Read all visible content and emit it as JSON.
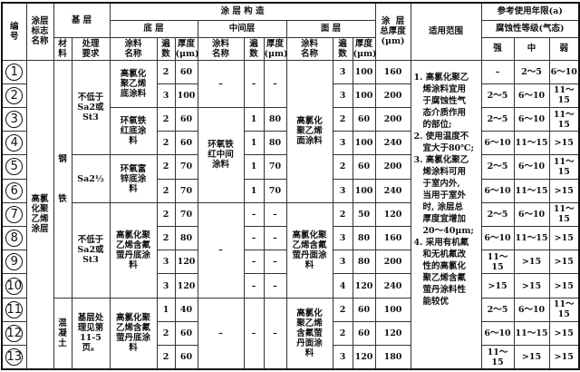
{
  "header": {
    "no": "编\n号",
    "coating_name": "涂层\n标志\n名称",
    "substrate": "基 层",
    "material": "材\n料",
    "treatment": "处理\n要求",
    "structure": "涂 层 构 造",
    "base_layer": "底 层",
    "middle_layer": "中间层",
    "face_layer": "面 层",
    "paint_name": "涂料\n名称",
    "coats": "遍\n数",
    "thickness": "厚度\n(μm)",
    "total_thickness": "涂  层\n总厚度\n(μm)",
    "scope": "适用范围",
    "service_life": "参考使用年限(a)",
    "corrosion_grade": "腐蚀性等级(气态)",
    "strong": "强",
    "medium": "中",
    "weak": "弱"
  },
  "coating_name": "高氯\n化聚\n乙烯\n涂层",
  "scope": "1. 高氯化聚乙\n   烯涂料宜用\n   于腐蚀性气\n   态介质作用\n   的部位;\n2. 使用温度不\n   宜大于80℃;\n3. 高氯化聚乙\n   烯涂料可用\n   于室内外,\n   当用于室外\n   时, 涂层总\n   厚度宜增加\n   20～40μm;\n4. 采用有机氟\n   和无机氟改\n   性的高氯化\n   聚乙烯含氟\n   萤丹涂料性\n   能较优",
  "material_groups": [
    {
      "text": "钢\n\n\n\n铁",
      "rows": 10
    },
    {
      "text": "混\n凝\n土",
      "rows": 3
    }
  ],
  "treatment_groups": [
    {
      "text": "不低于\nSa2或\nSt3",
      "rows": 4
    },
    {
      "text": "Sa2½",
      "rows": 2
    },
    {
      "text": "不低于\nSa2或\nSt3",
      "rows": 4
    },
    {
      "text": "基层处\n理见第\n11-5页。",
      "rows": 3
    }
  ],
  "base_name_groups": [
    {
      "text": "高氯化\n聚乙烯\n底涂料",
      "rows": 2
    },
    {
      "text": "环氧铁\n红底涂\n料",
      "rows": 2
    },
    {
      "text": "环氧富\n锌底涂\n料",
      "rows": 2
    },
    {
      "text": "高氯化聚\n乙烯含氟\n萤丹底涂\n料",
      "rows": 4
    },
    {
      "text": "高氯化聚\n乙烯含氟\n萤丹底涂\n料",
      "rows": 3
    }
  ],
  "middle_name_groups": [
    {
      "text": "–",
      "rows": 2
    },
    {
      "text": "环氧铁\n红中间\n涂料",
      "rows": 4
    },
    {
      "text": "–",
      "rows": 4
    },
    {
      "text": "–",
      "rows": 3
    }
  ],
  "face_name_groups": [
    {
      "text": "高氯化\n聚乙烯\n面涂料",
      "rows": 6
    },
    {
      "text": "高氯化聚\n乙烯含氟\n萤丹面涂\n料",
      "rows": 4
    },
    {
      "text": "高氯化\n聚乙烯\n含氟萤\n丹面涂\n料",
      "rows": 3
    }
  ],
  "middle_coat_groups": [
    {
      "coats": "–",
      "thickness": "–",
      "rows": 2
    },
    {
      "coats": "1",
      "thickness": "80",
      "rows": 1
    },
    {
      "coats": "1",
      "thickness": "80",
      "rows": 1
    },
    {
      "coats": "1",
      "thickness": "70",
      "rows": 1
    },
    {
      "coats": "1",
      "thickness": "70",
      "rows": 1
    },
    {
      "coats": "–",
      "thickness": "–",
      "rows": 1
    },
    {
      "coats": "–",
      "thickness": "–",
      "rows": 1
    },
    {
      "coats": "–",
      "thickness": "–",
      "rows": 1
    },
    {
      "coats": "–",
      "thickness": "–",
      "rows": 1
    },
    {
      "coats": "–",
      "thickness": "–",
      "rows": 3
    }
  ],
  "rows": [
    {
      "no": "1",
      "base_coats": "2",
      "base_thk": "60",
      "face_coats": "3",
      "face_thk": "100",
      "total": "160",
      "strong": "–",
      "medium": "2～5",
      "weak": "6～10"
    },
    {
      "no": "2",
      "base_coats": "3",
      "base_thk": "100",
      "face_coats": "3",
      "face_thk": "100",
      "total": "200",
      "strong": "2～5",
      "medium": "6～10",
      "weak": "11～15"
    },
    {
      "no": "3",
      "base_coats": "2",
      "base_thk": "60",
      "face_coats": "2",
      "face_thk": "60",
      "total": "200",
      "strong": "2～5",
      "medium": "6～10",
      "weak": "11～15"
    },
    {
      "no": "4",
      "base_coats": "2",
      "base_thk": "60",
      "face_coats": "3",
      "face_thk": "100",
      "total": "240",
      "strong": "6～10",
      "medium": "11～15",
      "weak": ">15"
    },
    {
      "no": "5",
      "base_coats": "2",
      "base_thk": "70",
      "face_coats": "2",
      "face_thk": "60",
      "total": "200",
      "strong": "2～5",
      "medium": "6～10",
      "weak": "11～15"
    },
    {
      "no": "6",
      "base_coats": "2",
      "base_thk": "70",
      "face_coats": "3",
      "face_thk": "100",
      "total": "240",
      "strong": "6～10",
      "medium": "11～15",
      "weak": ">15"
    },
    {
      "no": "7",
      "base_coats": "2",
      "base_thk": "70",
      "face_coats": "2",
      "face_thk": "50",
      "total": "120",
      "strong": "2～5",
      "medium": "6～10",
      "weak": "11～15"
    },
    {
      "no": "8",
      "base_coats": "2",
      "base_thk": "80",
      "face_coats": "3",
      "face_thk": "80",
      "total": "160",
      "strong": "6～10",
      "medium": "11～15",
      "weak": ">15"
    },
    {
      "no": "9",
      "base_coats": "3",
      "base_thk": "120",
      "face_coats": "3",
      "face_thk": "80",
      "total": "200",
      "strong": "11～15",
      "medium": ">15",
      "weak": ">15"
    },
    {
      "no": "10",
      "base_coats": "3",
      "base_thk": "120",
      "face_coats": "4",
      "face_thk": "120",
      "total": "240",
      "strong": ">15",
      "medium": ">15",
      "weak": ">15"
    },
    {
      "no": "11",
      "base_coats": "1",
      "base_thk": "40",
      "face_coats": "2",
      "face_thk": "60",
      "total": "100",
      "strong": "2～5",
      "medium": "6～10",
      "weak": "11～15"
    },
    {
      "no": "12",
      "base_coats": "2",
      "base_thk": "60",
      "face_coats": "2",
      "face_thk": "60",
      "total": "120",
      "strong": "6～10",
      "medium": "11～15",
      "weak": ">15"
    },
    {
      "no": "13",
      "base_coats": "2",
      "base_thk": "60",
      "face_coats": "3",
      "face_thk": "120",
      "total": "180",
      "strong": "11～15",
      "medium": ">15",
      "weak": ">15"
    }
  ]
}
